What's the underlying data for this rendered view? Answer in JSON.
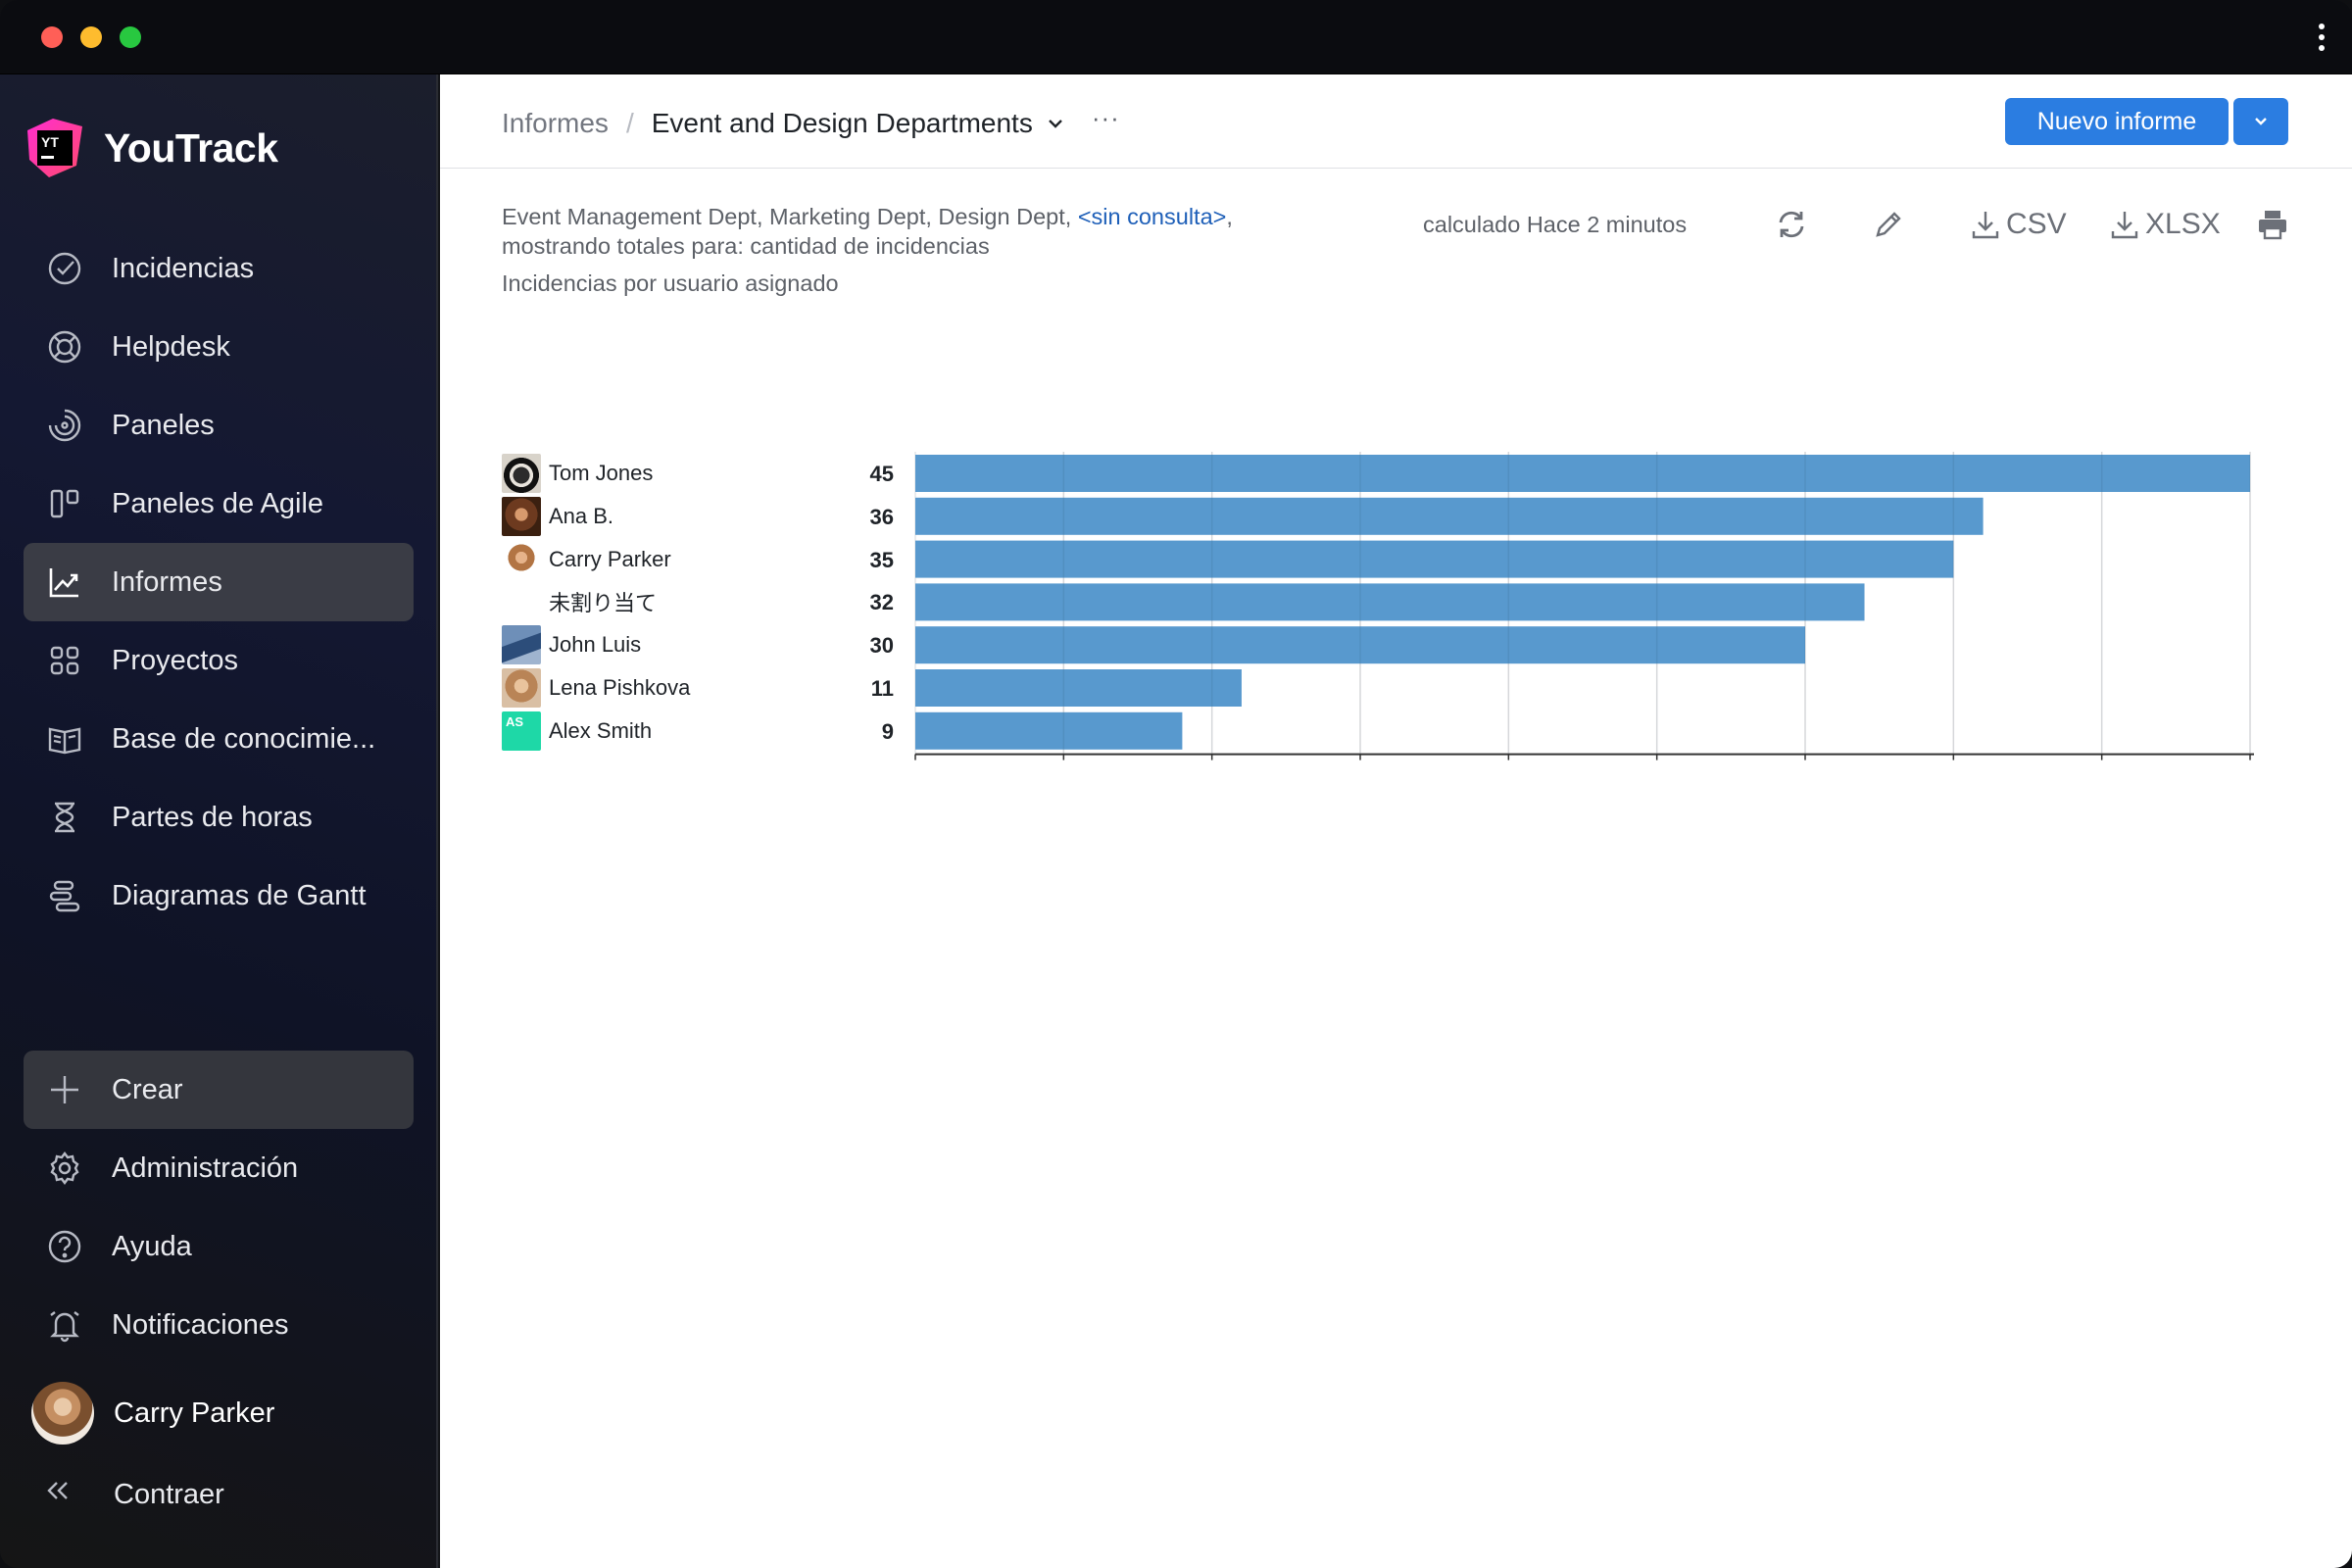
{
  "window": {
    "title": "YouTrack"
  },
  "sidebar": {
    "logo_text": "YouTrack",
    "logo_badge": "YT",
    "items": [
      {
        "label": "Incidencias",
        "icon": "check-circle-icon"
      },
      {
        "label": "Helpdesk",
        "icon": "lifebuoy-icon"
      },
      {
        "label": "Paneles",
        "icon": "dashboard-icon"
      },
      {
        "label": "Paneles de Agile",
        "icon": "agile-board-icon"
      },
      {
        "label": "Informes",
        "icon": "reports-icon",
        "active": true
      },
      {
        "label": "Proyectos",
        "icon": "grid-icon"
      },
      {
        "label": "Base de conocimie...",
        "icon": "book-icon"
      },
      {
        "label": "Partes de horas",
        "icon": "hourglass-icon"
      },
      {
        "label": "Diagramas de Gantt",
        "icon": "gantt-icon"
      }
    ],
    "bottom": [
      {
        "label": "Crear",
        "icon": "plus-icon"
      },
      {
        "label": "Administración",
        "icon": "gear-icon"
      },
      {
        "label": "Ayuda",
        "icon": "help-icon"
      },
      {
        "label": "Notificaciones",
        "icon": "bell-icon"
      }
    ],
    "user": "Carry Parker",
    "collapse": "Contraer"
  },
  "header": {
    "breadcrumb_root": "Informes",
    "breadcrumb_separator": "/",
    "breadcrumb_current": "Event and Design Departments",
    "more": "···",
    "new_report": "Nuevo informe"
  },
  "report": {
    "desc_prefix": "Event Management Dept, Marketing Dept, Design Dept, ",
    "desc_link": "<sin consulta>",
    "desc_suffix": ",",
    "desc_line2": "mostrando totales para: cantidad de incidencias",
    "subtitle": "Incidencias por usuario asignado",
    "calculated": "calculado Hace 2 minutos",
    "csv": "CSV",
    "xlsx": "XLSX"
  },
  "colors": {
    "bar": "#4f93cb",
    "accent": "#2b7de1",
    "link": "#1e5fb8"
  },
  "chart_data": {
    "type": "bar",
    "orientation": "horizontal",
    "categories": [
      "Tom Jones",
      "Ana B.",
      "Carry Parker",
      "未割り当て",
      "John Luis",
      "Lena Pishkova",
      "Alex Smith"
    ],
    "values": [
      45,
      36,
      35,
      32,
      30,
      11,
      9
    ],
    "avatar_initials": {
      "Alex Smith": "AS"
    },
    "xlim": [
      0,
      45
    ],
    "xticks": [
      0,
      5,
      10,
      15,
      20,
      25,
      30,
      35,
      40,
      45
    ],
    "grid": true
  }
}
